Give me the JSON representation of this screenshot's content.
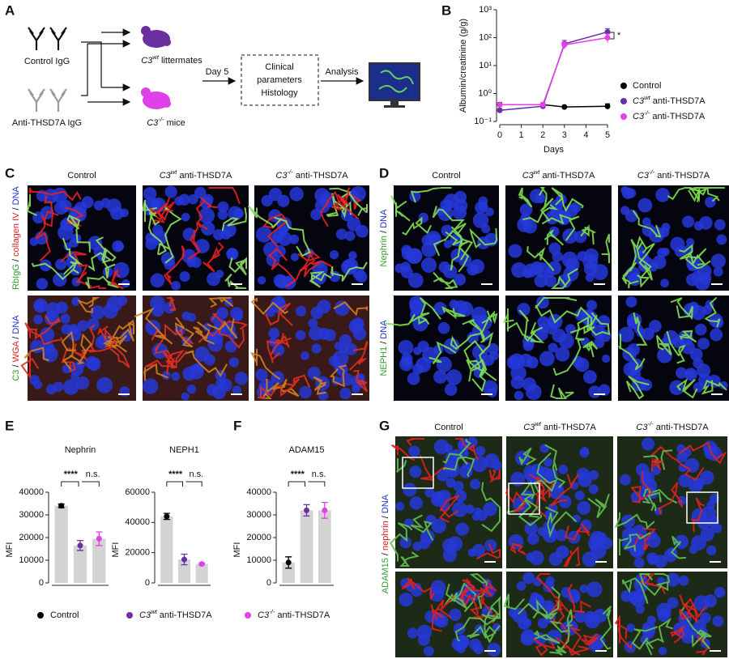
{
  "chart_data": [
    {
      "type": "line",
      "x_label": "Days",
      "y_label": "Albumin/creatinine (g/g)",
      "log_y": true,
      "x": [
        0,
        2,
        3,
        5
      ],
      "xlim": [
        0,
        5
      ],
      "xticks": [
        0,
        1,
        2,
        3,
        4,
        5
      ],
      "ylim": [
        0.1,
        1000
      ],
      "yticks": [
        {
          "value": 0.1,
          "label": "10⁻¹"
        },
        {
          "value": 1,
          "label": "10⁰"
        },
        {
          "value": 10,
          "label": "10¹"
        },
        {
          "value": 100,
          "label": "10²"
        },
        {
          "value": 1000,
          "label": "10³"
        }
      ],
      "series": [
        {
          "name": "Control",
          "color": "#000000",
          "values": [
            0.4,
            0.4,
            0.33,
            0.35
          ],
          "errors": [
            0.08,
            0.06,
            0.03,
            0.08
          ]
        },
        {
          "name": "C3wt anti-THSD7A",
          "color": "#6a2fa0",
          "values": [
            0.25,
            0.35,
            60,
            160
          ],
          "errors": [
            0.04,
            0.05,
            20,
            50
          ]
        },
        {
          "name": "C3-/- anti-THSD7A",
          "color": "#e040e8",
          "values": [
            0.4,
            0.4,
            55,
            100
          ],
          "errors": [
            0.07,
            0.06,
            15,
            35
          ]
        }
      ],
      "annotation": "*"
    },
    {
      "type": "bar",
      "title": "Nephrin",
      "y_label": "MFI",
      "categories": [
        "Control",
        "C3wt anti-THSD7A",
        "C3-/- anti-THSD7A"
      ],
      "values": [
        34000,
        16500,
        19500
      ],
      "errors": [
        800,
        2200,
        3000
      ],
      "color": "#d3d3d3",
      "point_colors": [
        "#000000",
        "#6a2fa0",
        "#e040e8"
      ],
      "ylim": [
        0,
        40000
      ],
      "yticks": [
        0,
        10000,
        20000,
        30000,
        40000
      ],
      "annotations": [
        "****",
        "n.s."
      ]
    },
    {
      "type": "bar",
      "title": "NEPH1",
      "y_label": "MFI",
      "categories": [
        "Control",
        "C3wt anti-THSD7A",
        "C3-/- anti-THSD7A"
      ],
      "values": [
        44000,
        15500,
        12500
      ],
      "errors": [
        2000,
        3500,
        600
      ],
      "color": "#d3d3d3",
      "point_colors": [
        "#000000",
        "#6a2fa0",
        "#e040e8"
      ],
      "ylim": [
        0,
        60000
      ],
      "yticks": [
        0,
        20000,
        40000,
        60000
      ],
      "annotations": [
        "****",
        "n.s."
      ]
    },
    {
      "type": "bar",
      "title": "ADAM15",
      "y_label": "MFI",
      "categories": [
        "Control",
        "C3wt anti-THSD7A",
        "C3-/- anti-THSD7A"
      ],
      "values": [
        9000,
        32000,
        32000
      ],
      "errors": [
        2500,
        2500,
        3500
      ],
      "color": "#d3d3d3",
      "point_colors": [
        "#000000",
        "#6a2fa0",
        "#e040e8"
      ],
      "ylim": [
        0,
        40000
      ],
      "yticks": [
        0,
        10000,
        20000,
        30000,
        40000
      ],
      "annotations": [
        "****",
        "n.s."
      ]
    }
  ],
  "panels": {
    "A": {
      "letter": "A",
      "control": "Control IgG",
      "anti": "Anti-THSD7A IgG",
      "wt": "C3wt littermates",
      "ko": "C3-/- mice",
      "day": "Day 5",
      "box": [
        "Clinical",
        "parameters",
        "Histology"
      ],
      "analysis": "Analysis"
    },
    "B": {
      "letter": "B"
    },
    "C": {
      "letter": "C",
      "columns": [
        "Control",
        "C3wt anti-THSD7A",
        "C3-/- anti-THSD7A"
      ],
      "rows": [
        [
          {
            "text": "RbIgG",
            "color": "#2e9e2e"
          },
          {
            "text": " / ",
            "color": "#000000"
          },
          {
            "text": "collagen IV",
            "color": "#e0201e"
          },
          {
            "text": " / ",
            "color": "#000000"
          },
          {
            "text": "DNA",
            "color": "#2030d0"
          }
        ],
        [
          {
            "text": "C3",
            "color": "#2e9e2e"
          },
          {
            "text": " / ",
            "color": "#000000"
          },
          {
            "text": "WGA",
            "color": "#e0201e"
          },
          {
            "text": " / ",
            "color": "#000000"
          },
          {
            "text": "DNA",
            "color": "#2030d0"
          }
        ]
      ]
    },
    "D": {
      "letter": "D",
      "columns": [
        "Control",
        "C3wt anti-THSD7A",
        "C3-/- anti-THSD7A"
      ],
      "rows": [
        [
          {
            "text": "Nephrin",
            "color": "#2e9e2e"
          },
          {
            "text": " / ",
            "color": "#000000"
          },
          {
            "text": "DNA",
            "color": "#2030d0"
          }
        ],
        [
          {
            "text": "NEPH1",
            "color": "#2e9e2e"
          },
          {
            "text": " / ",
            "color": "#000000"
          },
          {
            "text": "DNA",
            "color": "#2030d0"
          }
        ]
      ]
    },
    "E": {
      "letter": "E"
    },
    "F": {
      "letter": "F"
    },
    "G": {
      "letter": "G",
      "columns": [
        "Control",
        "C3wt anti-THSD7A",
        "C3-/- anti-THSD7A"
      ],
      "rows": [
        [
          {
            "text": "ADAM15",
            "color": "#2e9e2e"
          },
          {
            "text": " / ",
            "color": "#000000"
          },
          {
            "text": "nephrin",
            "color": "#e0201e"
          },
          {
            "text": " / ",
            "color": "#000000"
          },
          {
            "text": "DNA",
            "color": "#2030d0"
          }
        ]
      ]
    },
    "legend": [
      {
        "name": "Control",
        "color": "#000000"
      },
      {
        "name": "C3wt anti-THSD7A",
        "color": "#6a2fa0"
      },
      {
        "name": "C3-/- anti-THSD7A",
        "color": "#e040e8"
      }
    ]
  }
}
